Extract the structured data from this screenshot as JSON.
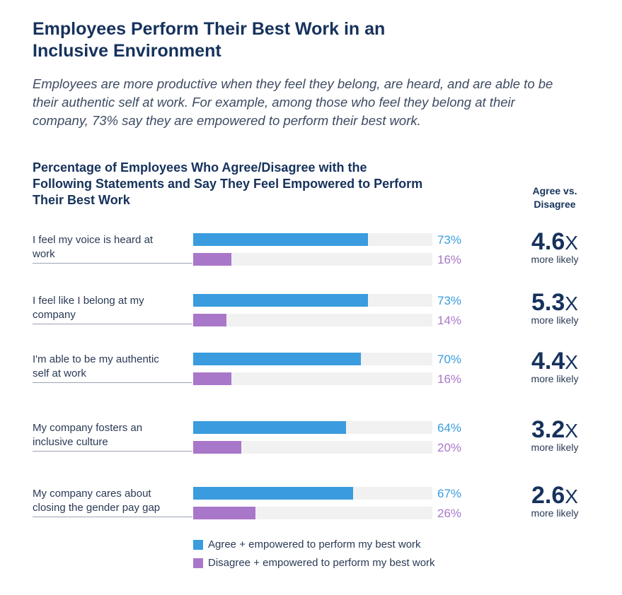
{
  "header": {
    "title": "Employees Perform Their Best Work in an Inclusive Environment",
    "subtitle": "Employees are more productive when they feel they belong, are heard, and are able to be their authentic self at work. For example, among those who feel they belong at their company, 73% say they are empowered to perform their best work."
  },
  "chart_data": {
    "type": "bar",
    "orientation": "horizontal",
    "title": "Percentage of Employees Who Agree/Disagree with the Following Statements and Say They Feel Empowered to Perform Their Best Work",
    "categories": [
      "I feel my voice is heard at work",
      "I feel like I belong at my company",
      "I'm able to be my authentic self at work",
      "My company fosters an inclusive culture",
      "My company cares about closing the gender pay gap"
    ],
    "series": [
      {
        "name": "Agree + empowered to perform my best work",
        "values": [
          73,
          73,
          70,
          64,
          67
        ],
        "labels": [
          "73%",
          "73%",
          "70%",
          "64%",
          "67%"
        ],
        "color": "#3a9cde"
      },
      {
        "name": "Disagree + empowered to perform my best work",
        "values": [
          16,
          14,
          16,
          20,
          26
        ],
        "labels": [
          "16%",
          "14%",
          "16%",
          "20%",
          "26%"
        ],
        "color": "#a977c9"
      }
    ],
    "xlim": [
      0,
      100
    ],
    "legend_position": "bottom",
    "ratio_header": "Agree vs. Disagree",
    "ratios": [
      {
        "value": "4.6",
        "suffix": "X",
        "sub": "more likely"
      },
      {
        "value": "5.3",
        "suffix": "X",
        "sub": "more likely"
      },
      {
        "value": "4.4",
        "suffix": "X",
        "sub": "more likely"
      },
      {
        "value": "3.2",
        "suffix": "X",
        "sub": "more likely"
      },
      {
        "value": "2.6",
        "suffix": "X",
        "sub": "more likely"
      }
    ]
  }
}
